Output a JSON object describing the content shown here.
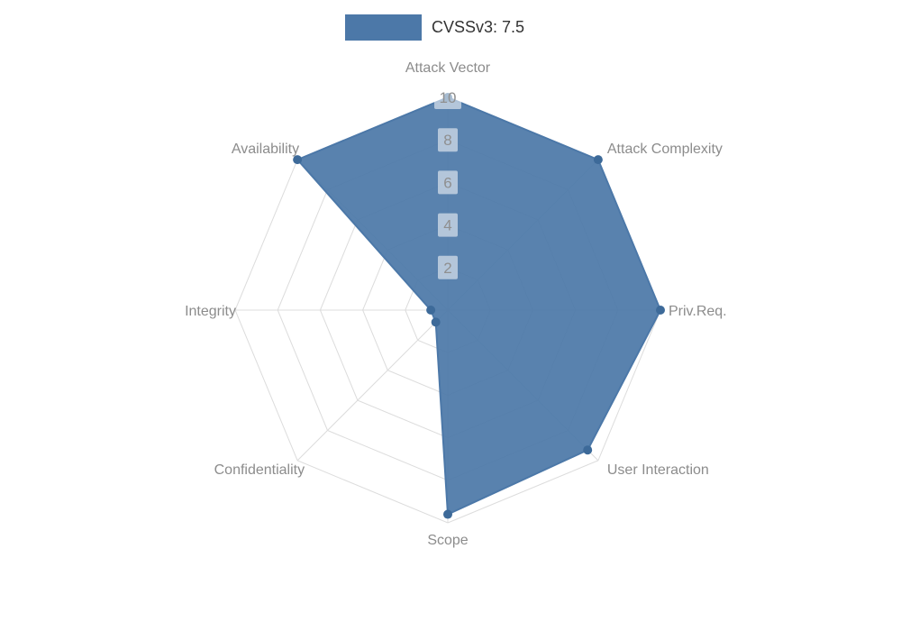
{
  "chart_data": {
    "type": "radar",
    "title": "",
    "legend_label": "CVSSv3: 7.5",
    "axes": [
      "Attack Vector",
      "Attack Complexity",
      "Priv.Req.",
      "User Interaction",
      "Scope",
      "Confidentiality",
      "Integrity",
      "Availability"
    ],
    "series": [
      {
        "name": "CVSSv3: 7.5",
        "values": [
          10,
          10,
          10,
          9.3,
          9.6,
          0.8,
          0.8,
          10
        ],
        "color": "#4c78a8"
      }
    ],
    "ticks": [
      2,
      4,
      6,
      8,
      10
    ],
    "rlim": [
      0,
      10
    ],
    "grid": true,
    "legend_position": "top-center",
    "colors": {
      "fill": "#4c78a8",
      "stroke": "#4c78a8",
      "marker": "#3d6a99",
      "grid_line": "#dcdcdc",
      "axis_label": "#8c8c8c",
      "tick_text": "#8f8f8f",
      "tick_box": "#ffffff",
      "legend_text": "#333333"
    }
  }
}
